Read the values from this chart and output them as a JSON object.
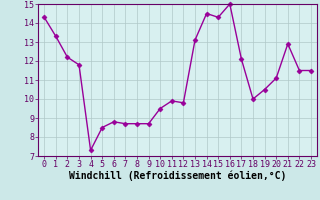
{
  "x": [
    0,
    1,
    2,
    3,
    4,
    5,
    6,
    7,
    8,
    9,
    10,
    11,
    12,
    13,
    14,
    15,
    16,
    17,
    18,
    19,
    20,
    21,
    22,
    23
  ],
  "y": [
    14.3,
    13.3,
    12.2,
    11.8,
    7.3,
    8.5,
    8.8,
    8.7,
    8.7,
    8.7,
    9.5,
    9.9,
    9.8,
    13.1,
    14.5,
    14.3,
    15.0,
    12.1,
    10.0,
    10.5,
    11.1,
    12.9,
    11.5,
    11.5
  ],
  "line_color": "#990099",
  "marker": "D",
  "marker_size": 2.5,
  "bg_color": "#cce8e8",
  "plot_bg_color": "#d8f0f0",
  "grid_color": "#b0c8c8",
  "spine_color": "#660066",
  "xlabel": "Windchill (Refroidissement éolien,°C)",
  "xlabel_fontsize": 7,
  "ylim": [
    7,
    15
  ],
  "xlim": [
    -0.5,
    23.5
  ],
  "yticks": [
    7,
    8,
    9,
    10,
    11,
    12,
    13,
    14,
    15
  ],
  "xticks": [
    0,
    1,
    2,
    3,
    4,
    5,
    6,
    7,
    8,
    9,
    10,
    11,
    12,
    13,
    14,
    15,
    16,
    17,
    18,
    19,
    20,
    21,
    22,
    23
  ],
  "tick_fontsize": 6,
  "linewidth": 1.0
}
